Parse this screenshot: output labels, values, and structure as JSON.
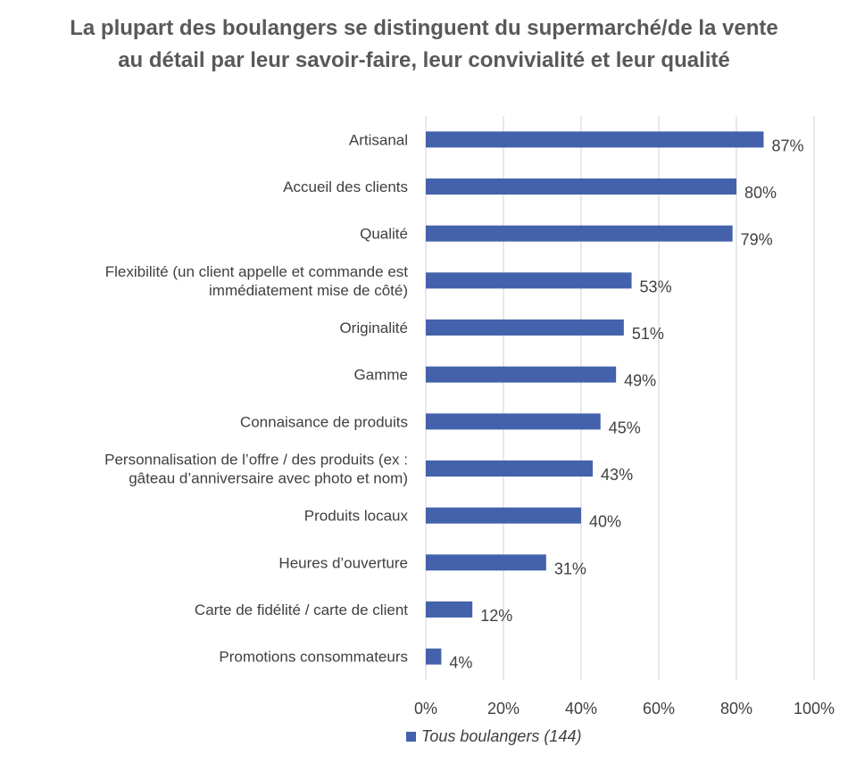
{
  "chart_data": {
    "type": "bar",
    "orientation": "horizontal",
    "title": "La plupart des boulangers se distinguent du supermarché/de la vente au détail par leur savoir-faire, leur convivialité et leur qualité",
    "categories": [
      "Artisanal",
      "Accueil des clients",
      "Qualité",
      "Flexibilité (un client appelle et commande est immédiatement mise de côté)",
      "Originalité",
      "Gamme",
      "Connaisance de produits",
      "Personnalisation de l’offre / des produits (ex : gâteau d’anniversaire avec photo et nom)",
      "Produits locaux",
      "Heures d’ouverture",
      "Carte de fidélité / carte de client",
      "Promotions consommateurs"
    ],
    "category_lines": [
      [
        "Artisanal"
      ],
      [
        "Accueil des clients"
      ],
      [
        "Qualité"
      ],
      [
        "Flexibilité (un client appelle et commande est",
        "immédiatement mise de côté)"
      ],
      [
        "Originalité"
      ],
      [
        "Gamme"
      ],
      [
        "Connaisance de produits"
      ],
      [
        "Personnalisation de l’offre / des produits (ex :",
        "gâteau d’anniversaire avec photo et nom)"
      ],
      [
        "Produits locaux"
      ],
      [
        "Heures d’ouverture"
      ],
      [
        "Carte de fidélité / carte de client"
      ],
      [
        "Promotions consommateurs"
      ]
    ],
    "series": [
      {
        "name": "Tous boulangers (144)",
        "values": [
          87,
          80,
          79,
          53,
          51,
          49,
          45,
          43,
          40,
          31,
          12,
          4
        ],
        "labels": [
          "87%",
          "80%",
          "79%",
          "53%",
          "51%",
          "49%",
          "45%",
          "43%",
          "40%",
          "31%",
          "12%",
          "4%"
        ],
        "color": "#4462ac"
      }
    ],
    "xlim": [
      0,
      100
    ],
    "xticks": [
      0,
      20,
      40,
      60,
      80,
      100
    ],
    "xtick_labels": [
      "0%",
      "20%",
      "40%",
      "60%",
      "80%",
      "100%"
    ],
    "grid": "vertical",
    "gridline_color": "#d9d9d9",
    "legend_position": "bottom"
  }
}
